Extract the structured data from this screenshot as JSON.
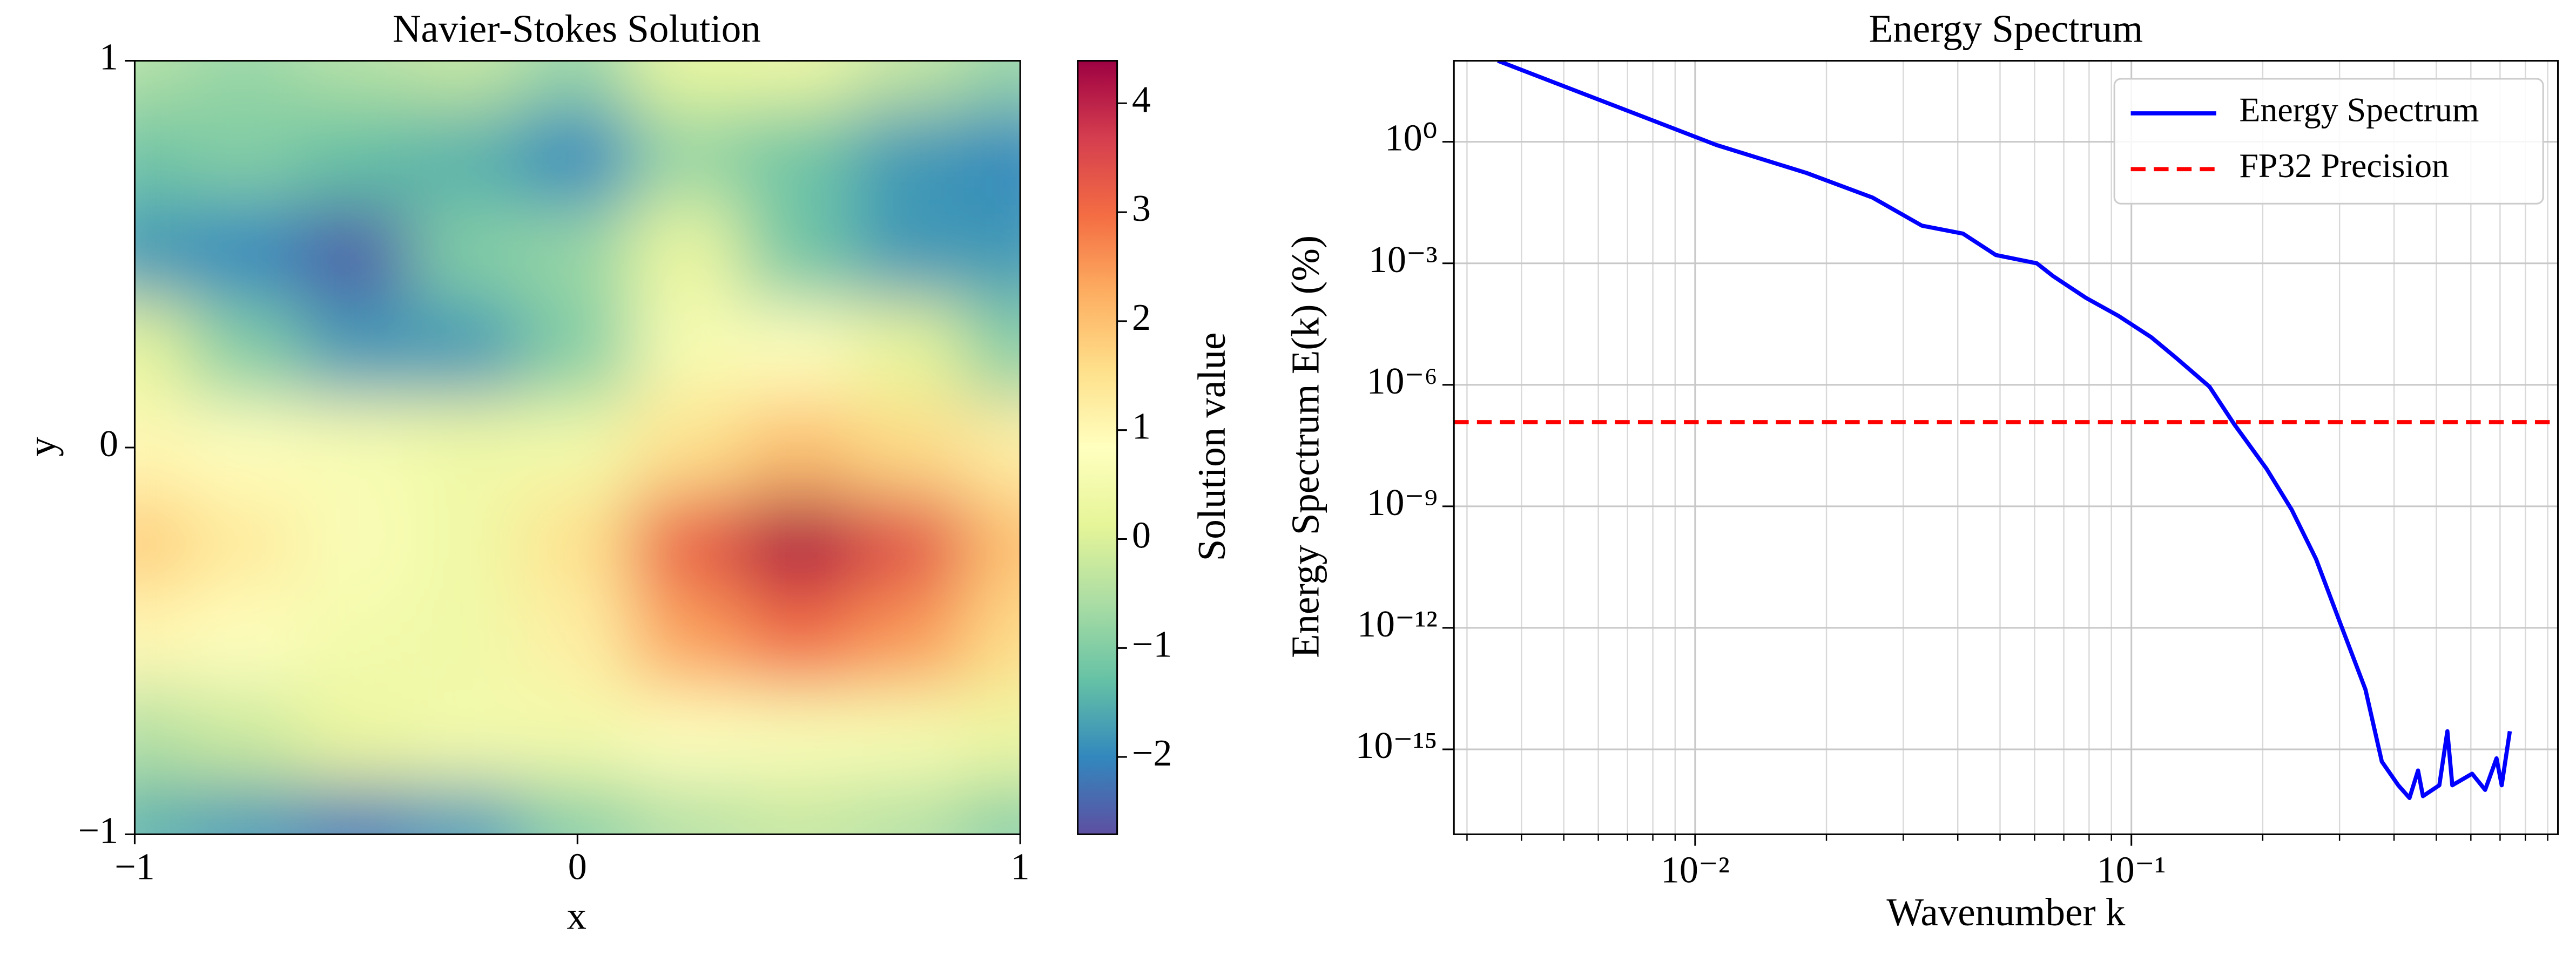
{
  "chart_data": [
    {
      "type": "heatmap",
      "title": "Navier-Stokes Solution",
      "xlabel": "x",
      "ylabel": "y",
      "x": [
        -1,
        -0.75,
        -0.5,
        -0.25,
        0,
        0.25,
        0.5,
        0.75,
        1
      ],
      "y": [
        1,
        0.75,
        0.5,
        0.25,
        0,
        -0.25,
        -0.5,
        -0.75,
        -1
      ],
      "z": [
        [
          -0.5,
          -0.8,
          -0.5,
          -0.3,
          -0.8,
          0.2,
          0.3,
          -0.3,
          -0.8
        ],
        [
          -1.2,
          -1.0,
          -1.3,
          -1.5,
          -2.0,
          -0.8,
          -1.2,
          -1.8,
          -2.0
        ],
        [
          -1.8,
          -2.0,
          -2.5,
          -1.0,
          -0.8,
          0.3,
          -1.2,
          -1.8,
          -1.8
        ],
        [
          0.2,
          -1.0,
          -1.8,
          -1.8,
          -1.0,
          0.6,
          0.8,
          0.2,
          -1.0
        ],
        [
          1.0,
          0.8,
          0.6,
          0.4,
          0.5,
          1.5,
          2.0,
          1.6,
          1.2
        ],
        [
          1.8,
          1.3,
          0.7,
          0.4,
          1.5,
          3.2,
          4.2,
          3.4,
          2.0
        ],
        [
          1.0,
          0.8,
          0.5,
          0.4,
          1.2,
          2.4,
          3.0,
          2.5,
          1.6
        ],
        [
          -0.5,
          -0.2,
          0.3,
          0.5,
          0.5,
          0.8,
          0.7,
          0.6,
          0.3
        ],
        [
          -1.5,
          -1.8,
          -2.2,
          -1.8,
          -1.0,
          -0.5,
          -0.3,
          -0.5,
          -1.0
        ]
      ],
      "xlim": [
        -1,
        1
      ],
      "ylim": [
        -1,
        1
      ],
      "xticks": [
        {
          "value": -1,
          "label": "−1"
        },
        0,
        1
      ],
      "yticks": [
        {
          "value": -1,
          "label": "−1"
        },
        0,
        1
      ],
      "colorbar": {
        "label": "Solution value",
        "clim": [
          -2.71,
          4.39
        ],
        "ticks": [
          {
            "value": -2,
            "label": "−2"
          },
          {
            "value": -1,
            "label": "−1"
          },
          0,
          1,
          2,
          3,
          4
        ],
        "colormap": [
          "#5e4fa2",
          "#3288bd",
          "#66c2a5",
          "#abdda4",
          "#e6f598",
          "#ffffbf",
          "#fee08b",
          "#fdae61",
          "#f46d43",
          "#d53e4f",
          "#9e0142"
        ]
      }
    },
    {
      "type": "line",
      "title": "Energy Spectrum",
      "xlabel": "Wavenumber k",
      "ylabel": "Energy Spectrum E(k) (%)",
      "xscale": "log",
      "yscale": "log",
      "x": [
        0.00353,
        0.0112,
        0.018,
        0.0255,
        0.0331,
        0.0411,
        0.0489,
        0.0607,
        0.0662,
        0.0787,
        0.0935,
        0.111,
        0.127,
        0.151,
        0.172,
        0.204,
        0.233,
        0.265,
        0.302,
        0.344,
        0.375,
        0.409,
        0.434,
        0.454,
        0.466,
        0.508,
        0.53,
        0.544,
        0.604,
        0.647,
        0.687,
        0.706,
        0.737
      ],
      "series": [
        {
          "name": "Energy Spectrum",
          "color": "#0000ff",
          "values": [
            100,
            0.83,
            0.17,
            0.042,
            0.0085,
            0.0054,
            0.0016,
            0.001,
            0.00048,
            0.00014,
            5e-05,
            1.5e-05,
            4.5e-06,
            9e-07,
            1.07e-07,
            8.5e-09,
            8.3e-10,
            5e-11,
            1.2e-12,
            3e-14,
            5e-16,
            1.3e-16,
            6.3e-17,
            3e-16,
            7e-17,
            1.3e-16,
            2.8e-15,
            1.3e-16,
            2.5e-16,
            1e-16,
            6e-16,
            1.3e-16,
            2.8e-15
          ]
        }
      ],
      "hlines": [
        {
          "name": "FP32 Precision",
          "value": 1.2e-07,
          "color": "#ff0000",
          "style": "dashed"
        }
      ],
      "xlim": [
        0.0028,
        0.95
      ],
      "ylim": [
        8e-18,
        100
      ],
      "xticks": [
        {
          "value": 0.01,
          "label": "10⁻²"
        },
        {
          "value": 0.1,
          "label": "10⁻¹"
        }
      ],
      "xminorticks": [
        0.003,
        0.004,
        0.005,
        0.006,
        0.007,
        0.008,
        0.009,
        0.02,
        0.03,
        0.04,
        0.05,
        0.06,
        0.07,
        0.08,
        0.09,
        0.2,
        0.3,
        0.4,
        0.5,
        0.6,
        0.7,
        0.8,
        0.9
      ],
      "yticks": [
        {
          "value": 1e-15,
          "label": "10⁻¹⁵"
        },
        {
          "value": 1e-12,
          "label": "10⁻¹²"
        },
        {
          "value": 1e-09,
          "label": "10⁻⁹"
        },
        {
          "value": 1e-06,
          "label": "10⁻⁶"
        },
        {
          "value": 0.001,
          "label": "10⁻³"
        },
        {
          "value": 1,
          "label": "10⁰"
        }
      ],
      "grid": true,
      "legend": "upper right"
    }
  ]
}
